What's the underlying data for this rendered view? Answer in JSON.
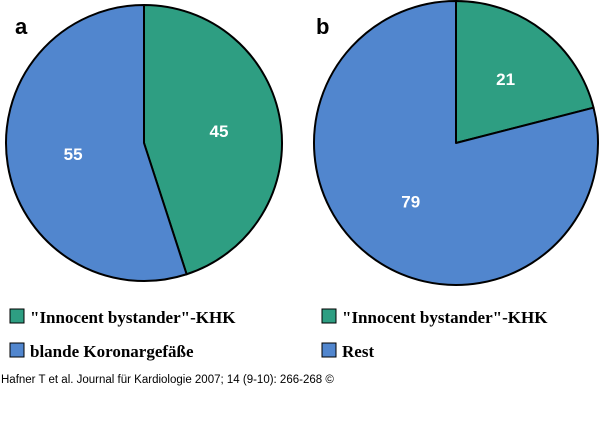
{
  "colors": {
    "green": "#2e9e82",
    "blue": "#5186ce",
    "outline": "#000000"
  },
  "chart_data": [
    {
      "type": "pie",
      "panel": "a",
      "slices": [
        {
          "label": "\"Innocent bystander\"-KHK",
          "value": 45,
          "color": "#2e9e82"
        },
        {
          "label": "blande Koronargefäße",
          "value": 55,
          "color": "#5186ce"
        }
      ],
      "legend_placement": "bottom"
    },
    {
      "type": "pie",
      "panel": "b",
      "slices": [
        {
          "label": "\"Innocent bystander\"-KHK",
          "value": 21,
          "color": "#2e9e82"
        },
        {
          "label": "Rest",
          "value": 79,
          "color": "#5186ce"
        }
      ],
      "legend_placement": "bottom"
    }
  ],
  "citation": "Hafner T et al. Journal für Kardiologie 2007; 14 (9-10): 266-268 ©"
}
